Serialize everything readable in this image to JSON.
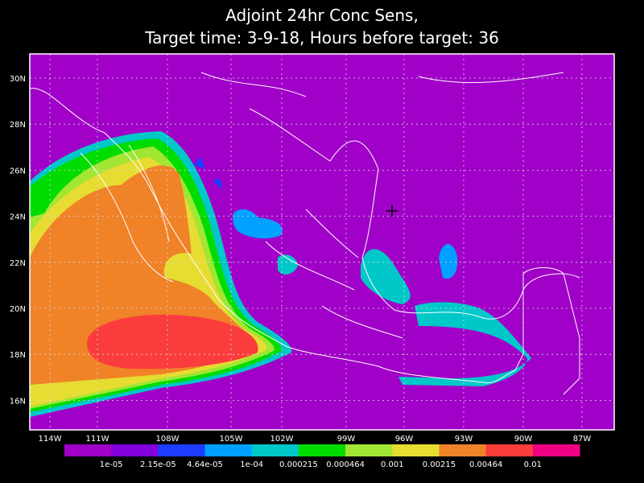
{
  "title": {
    "line1": "Adjoint 24hr Conc Sens,",
    "line2": "Target time: 3-9-18, Hours before target: 36"
  },
  "lat_labels": [
    "30N",
    "28N",
    "26N",
    "24N",
    "22N",
    "20N",
    "18N",
    "16N"
  ],
  "lon_labels": [
    "114W",
    "111W",
    "108W",
    "105W",
    "102W",
    "99W",
    "96W",
    "93W",
    "90W",
    "87W"
  ],
  "colorbar": {
    "colors": [
      "#a000c8",
      "#8200dc",
      "#1e3cff",
      "#00a0ff",
      "#00c8c8",
      "#00dc00",
      "#a0e632",
      "#e6dc32",
      "#f08228",
      "#fa3c3c",
      "#f00082"
    ],
    "labels": [
      "1e-05",
      "2.15e-05",
      "4.64e-05",
      "1e-04",
      "0.000215",
      "0.000464",
      "0.001",
      "0.00215",
      "0.00464",
      "0.01"
    ]
  }
}
